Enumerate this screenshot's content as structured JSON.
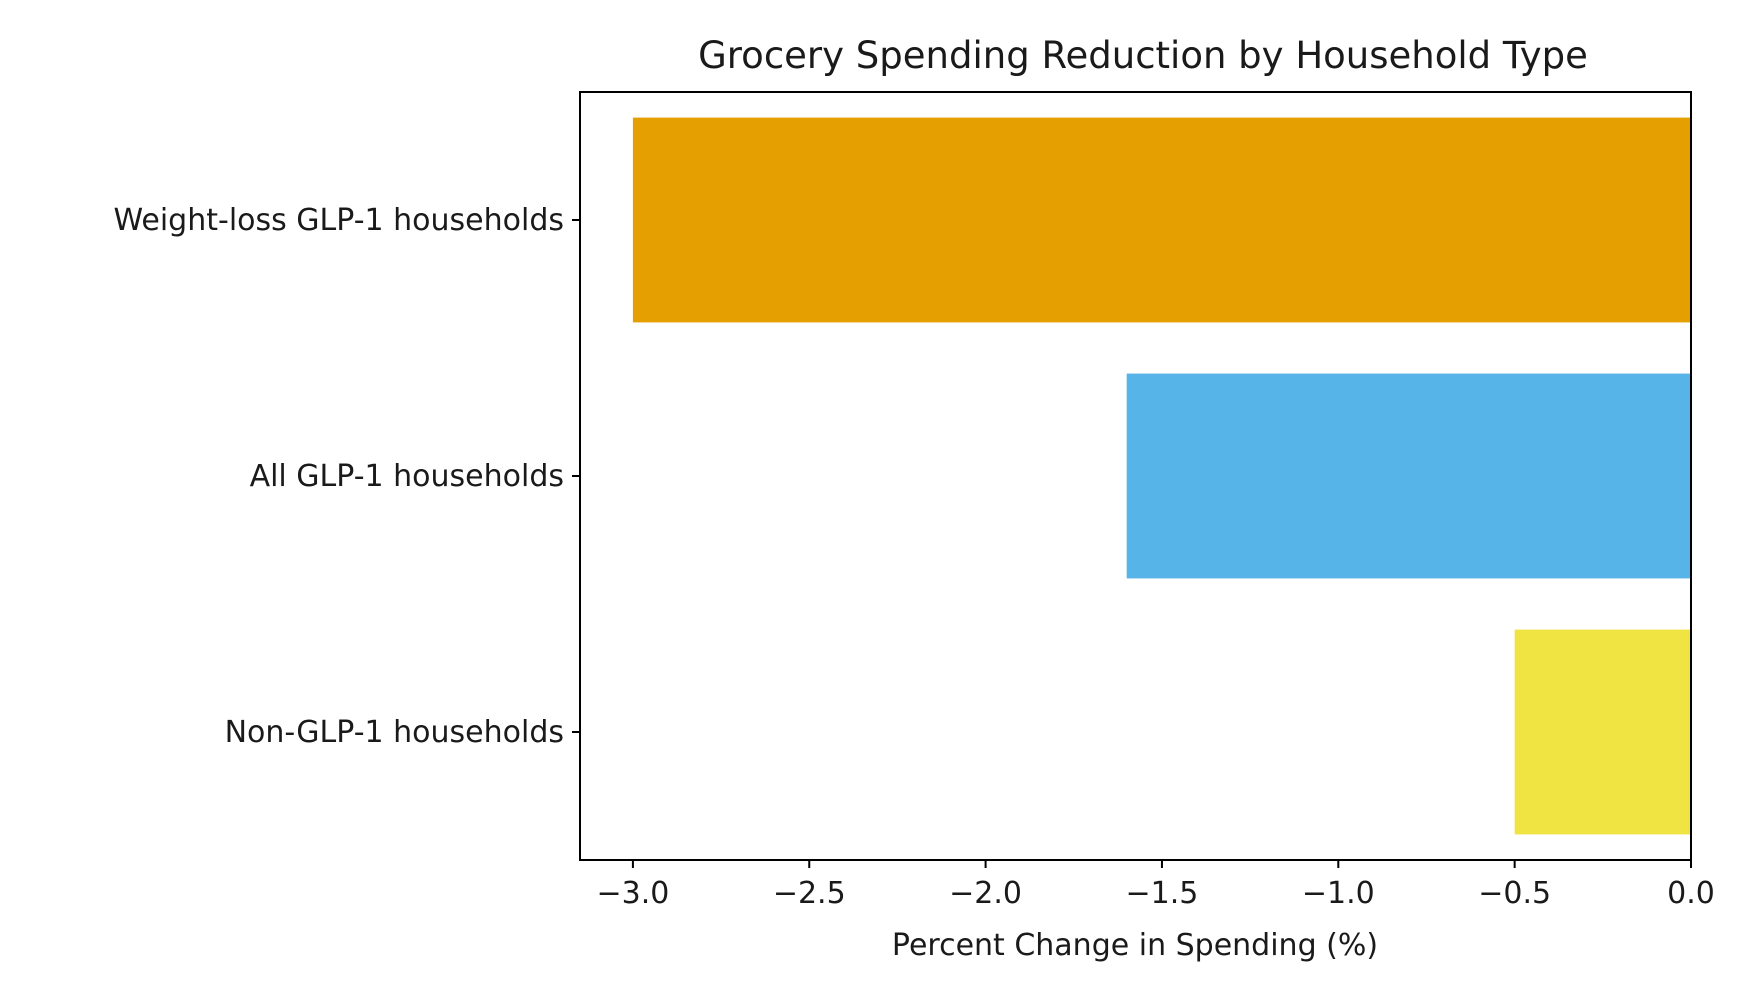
{
  "chart_data": {
    "type": "bar",
    "orientation": "horizontal",
    "title": "Grocery Spending Reduction by Household Type",
    "xlabel": "Percent Change in Spending (%)",
    "ylabel": "",
    "categories": [
      "Weight-loss GLP-1 households",
      "All GLP-1 households",
      "Non-GLP-1 households"
    ],
    "values": [
      -3.0,
      -1.6,
      -0.5
    ],
    "colors": [
      "#E69F00",
      "#56B4E9",
      "#F0E442"
    ],
    "xlim": [
      -3.15,
      0.0
    ],
    "xticks": [
      -3.0,
      -2.5,
      -2.0,
      -1.5,
      -1.0,
      -0.5,
      0.0
    ],
    "xtick_labels": [
      "−3.0",
      "−2.5",
      "−2.0",
      "−1.5",
      "−1.0",
      "−0.5",
      "0.0"
    ],
    "grid": false,
    "legend": "none"
  }
}
